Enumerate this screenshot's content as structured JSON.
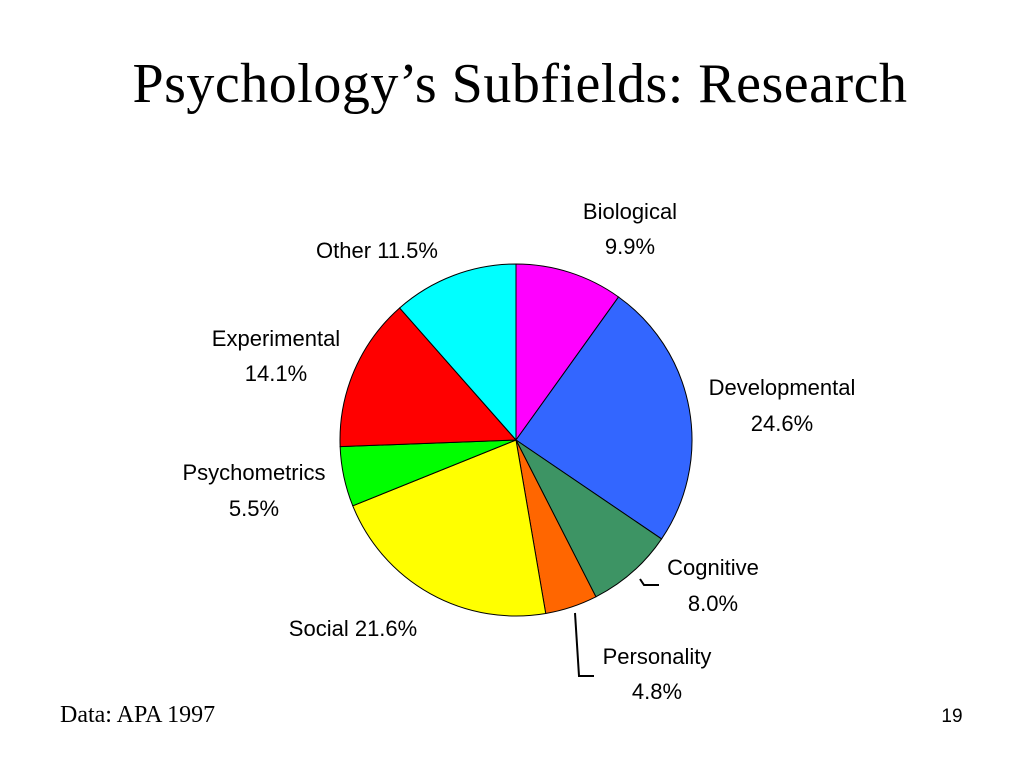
{
  "slide": {
    "title": "Psychology’s Subfields: Research",
    "source": "Data: APA 1997",
    "page_number": "19"
  },
  "chart_data": {
    "type": "pie",
    "title": "",
    "slices": [
      {
        "name": "Biological",
        "value": 9.9,
        "label": "9.9%",
        "color": "#ff00ff"
      },
      {
        "name": "Developmental",
        "value": 24.6,
        "label": "24.6%",
        "color": "#3366ff"
      },
      {
        "name": "Cognitive",
        "value": 8.0,
        "label": "8.0%",
        "color": "#3d9464"
      },
      {
        "name": "Personality",
        "value": 4.8,
        "label": "4.8%",
        "color": "#ff6600"
      },
      {
        "name": "Social",
        "value": 21.6,
        "label": "21.6%",
        "color": "#ffff00"
      },
      {
        "name": "Psychometrics",
        "value": 5.5,
        "label": "5.5%",
        "color": "#00ff00"
      },
      {
        "name": "Experimental",
        "value": 14.1,
        "label": "14.1%",
        "color": "#ff0000"
      },
      {
        "name": "Other",
        "value": 11.5,
        "label": "11.5%",
        "color": "#00ffff"
      }
    ]
  }
}
